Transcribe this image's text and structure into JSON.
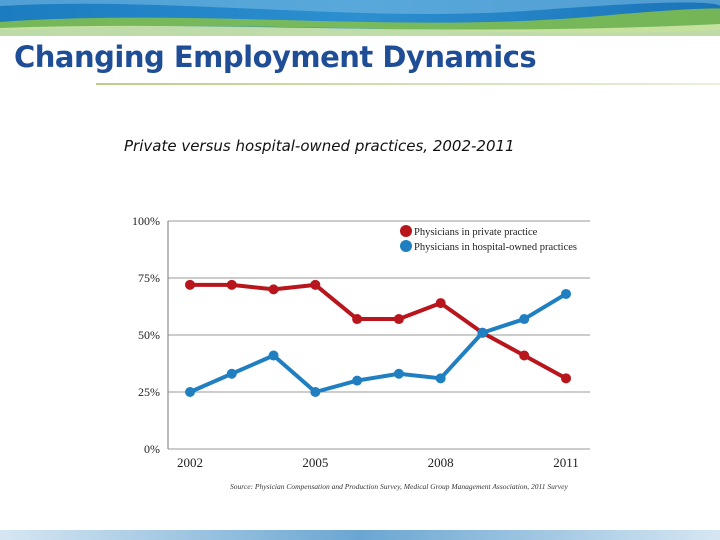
{
  "slide": {
    "title": "Changing Employment Dynamics"
  },
  "colors": {
    "title": "#1f4e96",
    "private": "#b8161c",
    "hospital": "#1f7fc0"
  },
  "chart_data": {
    "type": "line",
    "title": "Private versus hospital-owned practices, 2002-2011",
    "xlabel": "",
    "ylabel": "",
    "x": [
      2002,
      2003,
      2004,
      2005,
      2006,
      2007,
      2008,
      2009,
      2010,
      2011
    ],
    "x_tick_labels": [
      "2002",
      "2005",
      "2008",
      "2011"
    ],
    "x_tick_values": [
      2002,
      2005,
      2008,
      2011
    ],
    "y_tick_labels": [
      "100%",
      "75%",
      "50%",
      "25%",
      "0%"
    ],
    "y_tick_values": [
      100,
      75,
      50,
      25,
      0
    ],
    "ylim": [
      0,
      100
    ],
    "grid": true,
    "legend_position": "top-right",
    "series": [
      {
        "name": "Physicians in private practice",
        "color": "#b8161c",
        "values": [
          72,
          72,
          70,
          72,
          57,
          57,
          64,
          51,
          41,
          31
        ]
      },
      {
        "name": "Physicians in hospital-owned practices",
        "color": "#1f7fc0",
        "values": [
          25,
          33,
          41,
          25,
          30,
          33,
          31,
          51,
          57,
          68
        ]
      }
    ],
    "source": "Source: Physician Compensation and Production Survey, Medical Group Management Association, 2011 Survey"
  }
}
